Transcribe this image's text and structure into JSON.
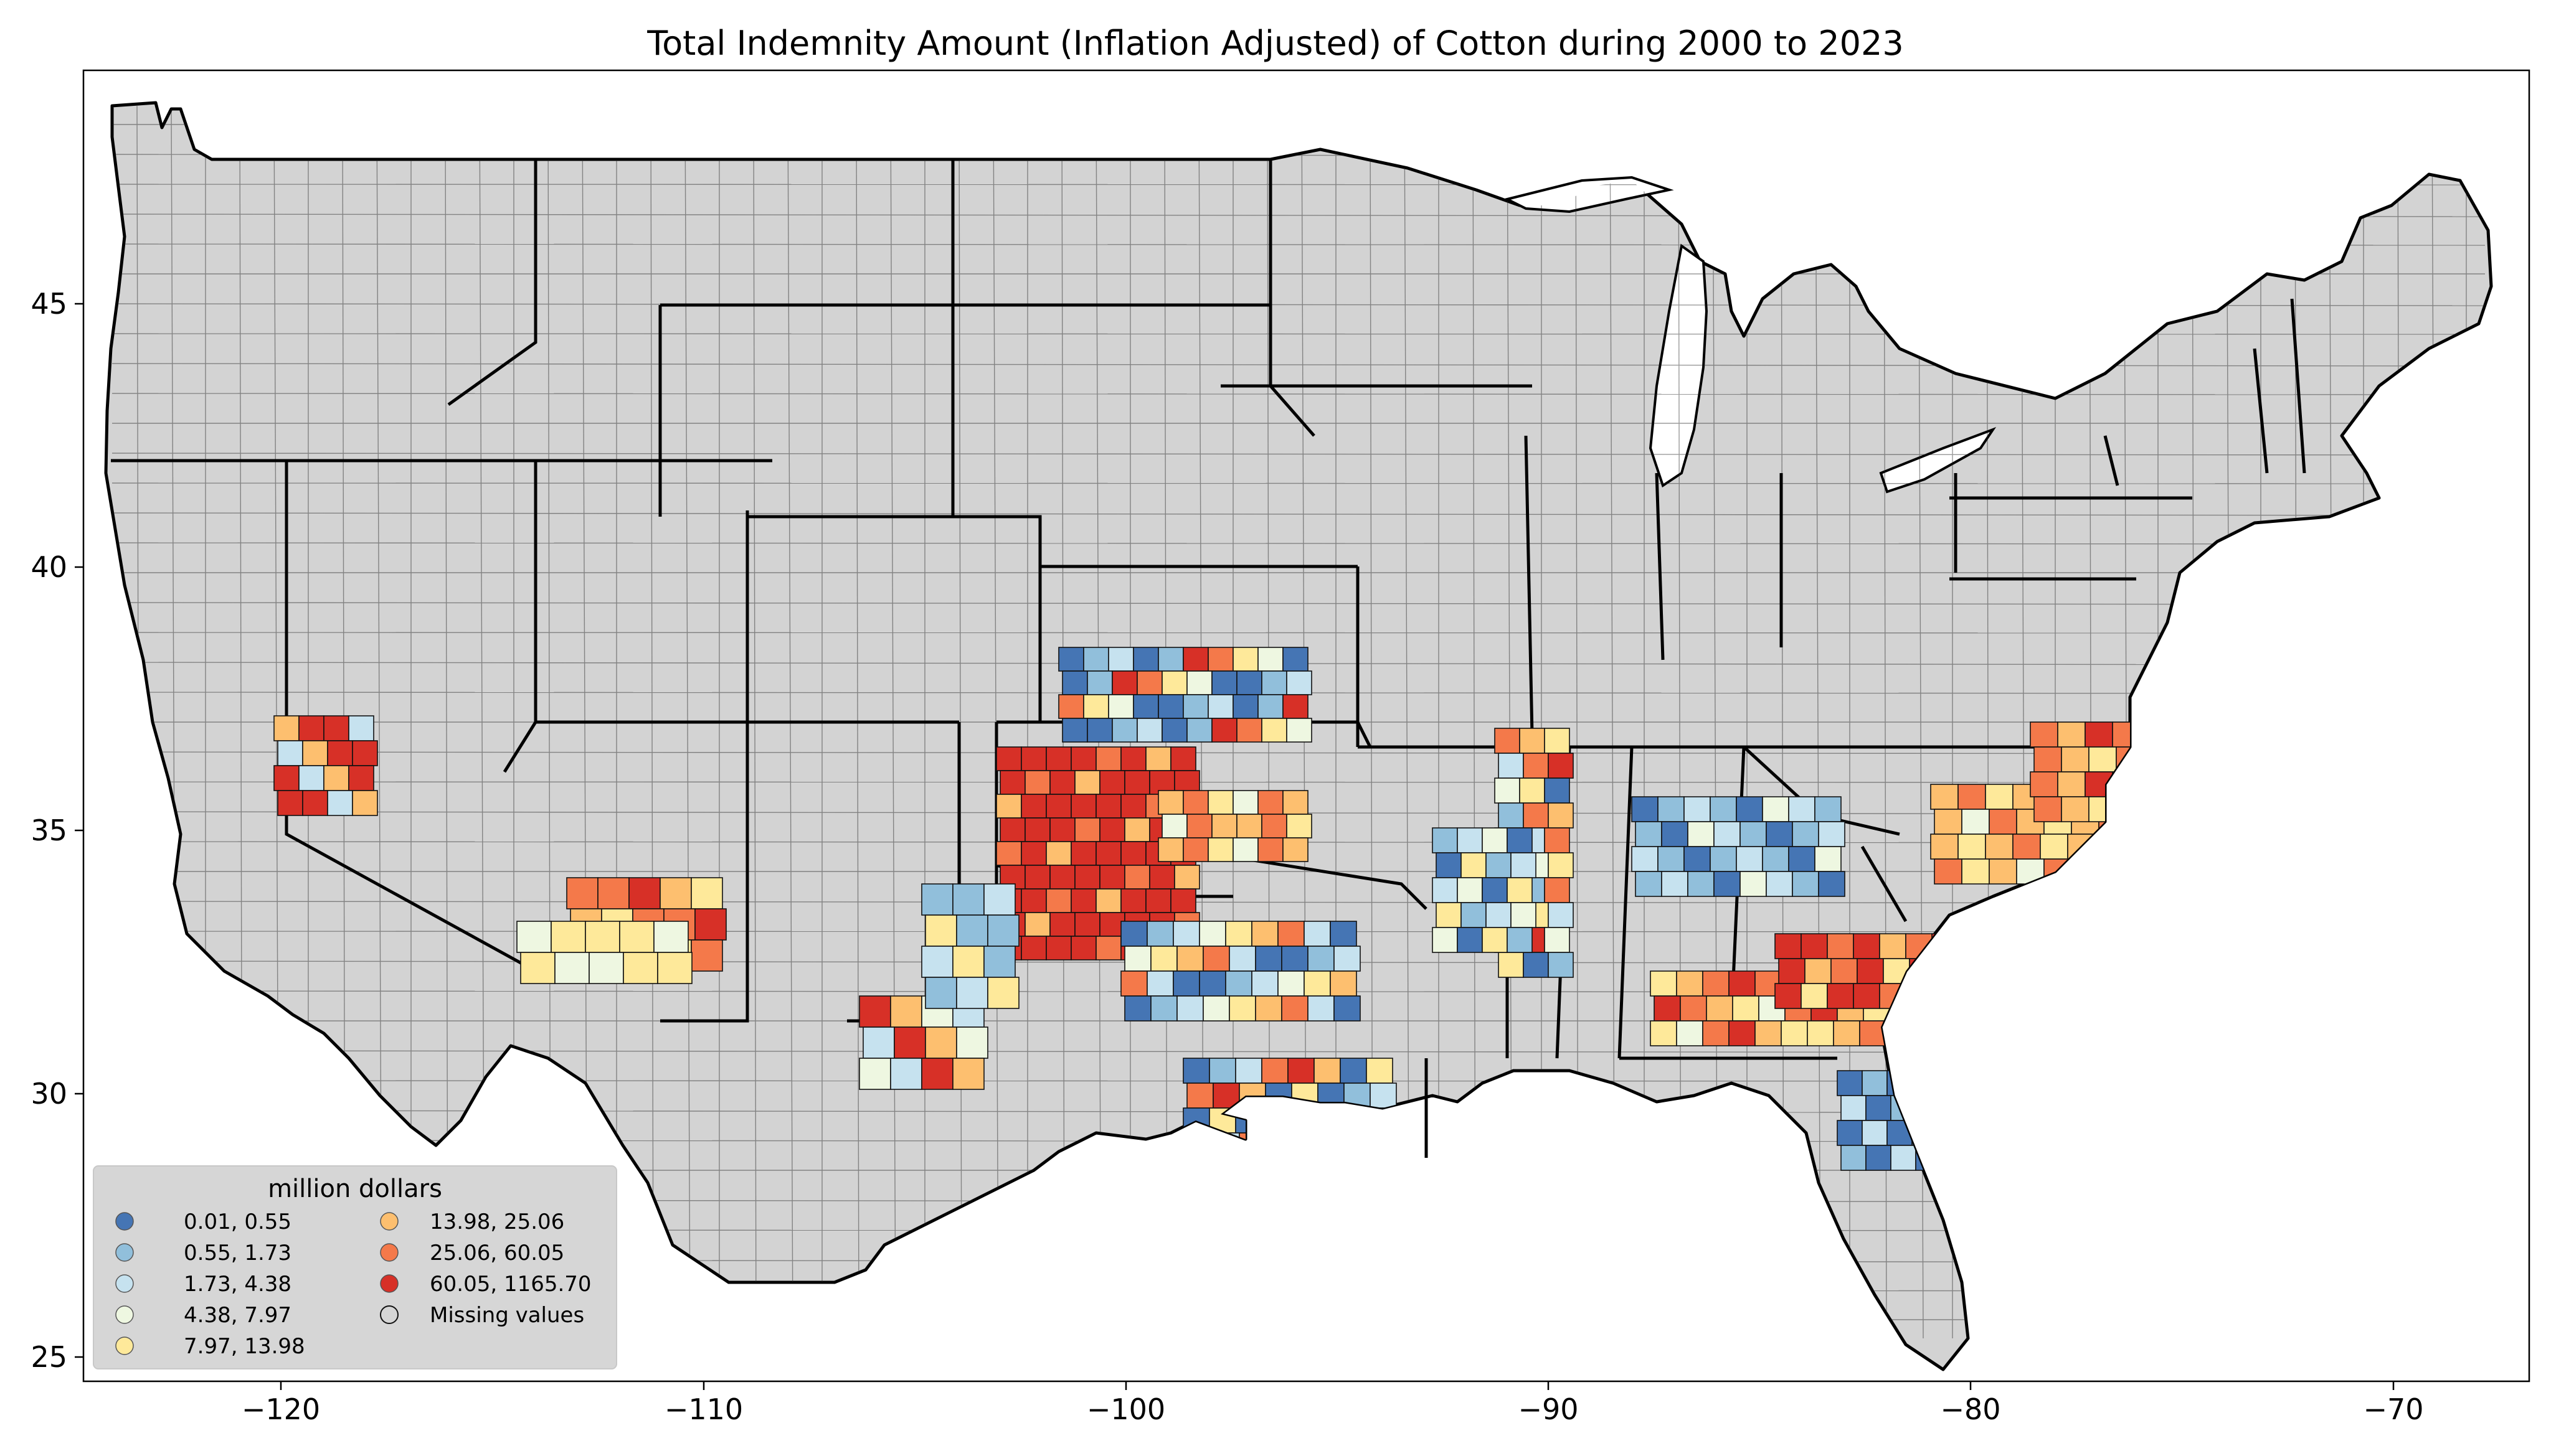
{
  "title": "Total Indemnity Amount  (Inflation Adjusted) of Cotton during 2000 to 2023",
  "axes": {
    "x_ticks": [
      {
        "value": -120,
        "label": "−120"
      },
      {
        "value": -110,
        "label": "−110"
      },
      {
        "value": -100,
        "label": "−100"
      },
      {
        "value": -90,
        "label": "−90"
      },
      {
        "value": -80,
        "label": "−80"
      },
      {
        "value": -70,
        "label": "−70"
      }
    ],
    "y_ticks": [
      {
        "value": 45,
        "label": "45"
      },
      {
        "value": 40,
        "label": "40"
      },
      {
        "value": 35,
        "label": "35"
      },
      {
        "value": 30,
        "label": "30"
      },
      {
        "value": 25,
        "label": "25"
      }
    ],
    "xlim": [
      -124.8,
      -66.9
    ],
    "ylim": [
      24.5,
      49.4
    ]
  },
  "legend": {
    "title": "million dollars",
    "placement": "lower-left",
    "items": [
      {
        "label": "0.01,    0.55",
        "color": "#4575b4"
      },
      {
        "label": "0.55,    1.73",
        "color": "#91bfdb"
      },
      {
        "label": "1.73,    4.38",
        "color": "#c6e2ef"
      },
      {
        "label": "4.38,    7.97",
        "color": "#eef7e1"
      },
      {
        "label": "7.97,   13.98",
        "color": "#fee99a"
      },
      {
        "label": "13.98,   25.06",
        "color": "#fdbf6f"
      },
      {
        "label": "25.06,   60.05",
        "color": "#f4794a"
      },
      {
        "label": "60.05, 1165.70",
        "color": "#d73027"
      },
      {
        "label": "Missing values",
        "color": "#d3d3d3"
      }
    ]
  },
  "colors": {
    "missing": "#d3d3d3",
    "border": "#000000",
    "background": "#ffffff"
  }
}
